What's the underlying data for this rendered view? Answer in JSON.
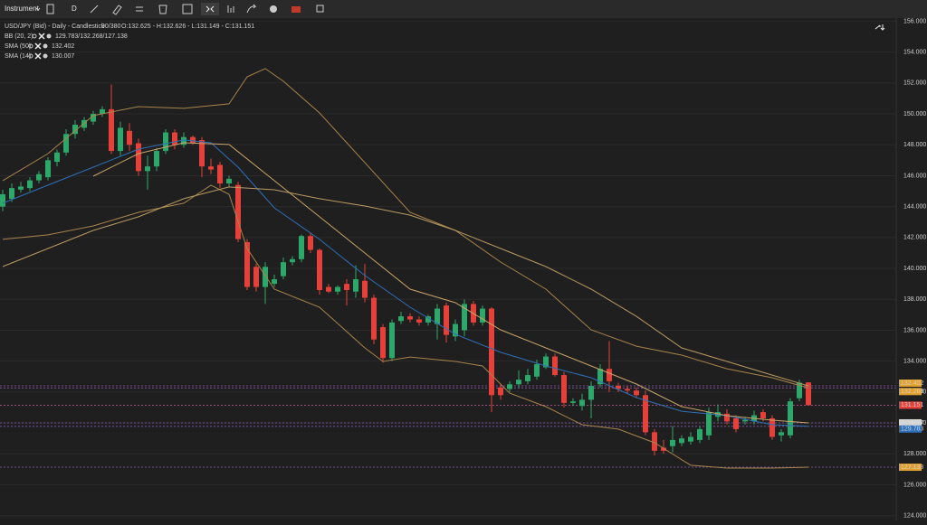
{
  "toolbar": {
    "instrument": "Instrument",
    "timeframe": "D"
  },
  "chart_data": {
    "type": "candlestick",
    "title": "USD/JPY (Bid) - Daily - Candlestick",
    "count_text": "90/380",
    "ohlc_text": "O:132.625 - H:132.626 - L:131.149 - C:131.151",
    "up_color": "#2ea86a",
    "down_color": "#e5413a",
    "ylim": [
      123.69,
      156.2
    ],
    "yticks": [
      {
        "value": 124,
        "label": "124.000"
      },
      {
        "value": 126,
        "label": "126.000"
      },
      {
        "value": 128,
        "label": "128.000"
      },
      {
        "value": 130,
        "label": "130.000"
      },
      {
        "value": 132,
        "label": "132.000"
      },
      {
        "value": 134,
        "label": "134.000"
      },
      {
        "value": 136,
        "label": "136.000"
      },
      {
        "value": 138,
        "label": "138.000"
      },
      {
        "value": 140,
        "label": "140.000"
      },
      {
        "value": 142,
        "label": "142.000"
      },
      {
        "value": 144,
        "label": "144.000"
      },
      {
        "value": 146,
        "label": "146.000"
      },
      {
        "value": 148,
        "label": "148.000"
      },
      {
        "value": 150,
        "label": "150.000"
      },
      {
        "value": 152,
        "label": "152.000"
      },
      {
        "value": 154,
        "label": "154.000"
      },
      {
        "value": 156,
        "label": "156.000"
      }
    ],
    "grid": true,
    "open": [
      144.0,
      144.5,
      145.1,
      145.2,
      145.7,
      145.9,
      146.9,
      147.5,
      148.7,
      149.1,
      149.5,
      150.0,
      150.3,
      147.6,
      148.9,
      148.1,
      146.3,
      146.6,
      147.6,
      148.8,
      148.0,
      148.5,
      148.3,
      146.6,
      146.7,
      145.5,
      145.4,
      141.7,
      140.1,
      138.8,
      139.0,
      139.5,
      140.4,
      140.6,
      142.1,
      141.2,
      138.8,
      138.5,
      139.0,
      138.5,
      139.2,
      138.1,
      136.2,
      134.2,
      136.6,
      136.9,
      136.7,
      136.5,
      136.4,
      137.6,
      135.6,
      136.0,
      137.7,
      136.5,
      137.4,
      132.3,
      132.2,
      132.5,
      132.7,
      133.0,
      133.6,
      134.3,
      133.1,
      131.3,
      131.1,
      131.5,
      132.5,
      133.5,
      132.4,
      132.2,
      132.1,
      131.8,
      129.4,
      128.4,
      128.5,
      128.7,
      128.8,
      128.9,
      129.2,
      130.4,
      130.6,
      130.3,
      130.1,
      130.1,
      130.7,
      130.3,
      129.2,
      129.2,
      131.6,
      132.625
    ],
    "high": [
      145.1,
      145.5,
      145.6,
      145.9,
      146.3,
      147.2,
      147.7,
      149.0,
      149.6,
      149.8,
      150.2,
      150.5,
      151.9,
      149.5,
      149.4,
      148.4,
      147.3,
      147.8,
      149.0,
      149.0,
      148.8,
      148.6,
      148.5,
      147.1,
      146.9,
      146.0,
      145.6,
      141.9,
      140.3,
      140.4,
      139.6,
      140.7,
      140.8,
      142.2,
      142.3,
      141.3,
      139.0,
      138.9,
      139.3,
      140.2,
      140.3,
      138.3,
      136.4,
      136.7,
      137.2,
      137.1,
      136.9,
      137.0,
      137.7,
      137.8,
      136.7,
      138.0,
      137.9,
      137.6,
      137.5,
      132.5,
      132.7,
      133.4,
      133.5,
      134.1,
      134.5,
      134.5,
      133.3,
      131.6,
      131.9,
      132.7,
      133.8,
      135.3,
      132.6,
      132.4,
      132.3,
      132.1,
      129.6,
      128.9,
      129.8,
      129.2,
      129.4,
      129.8,
      131.0,
      131.2,
      130.9,
      130.5,
      130.4,
      130.8,
      130.9,
      130.5,
      129.6,
      131.6,
      132.8,
      132.626
    ],
    "low": [
      143.7,
      144.3,
      144.9,
      145.0,
      145.5,
      145.7,
      146.6,
      147.3,
      148.4,
      148.9,
      149.3,
      149.8,
      147.4,
      147.3,
      147.6,
      146.0,
      145.1,
      146.3,
      147.4,
      147.7,
      147.8,
      148.0,
      145.9,
      146.1,
      145.2,
      145.3,
      141.7,
      138.6,
      138.5,
      137.7,
      138.8,
      139.3,
      140.2,
      140.4,
      141.0,
      138.3,
      138.4,
      138.3,
      137.6,
      138.1,
      137.8,
      135.1,
      133.9,
      134.0,
      136.4,
      136.5,
      136.3,
      136.3,
      135.4,
      135.2,
      135.3,
      135.6,
      136.3,
      136.3,
      130.7,
      131.5,
      132.0,
      132.3,
      132.5,
      132.8,
      133.5,
      133.0,
      131.0,
      131.1,
      130.8,
      130.3,
      132.3,
      132.0,
      132.0,
      131.9,
      131.6,
      129.2,
      127.9,
      128.0,
      128.1,
      128.5,
      128.6,
      128.7,
      128.9,
      130.1,
      129.9,
      129.4,
      129.9,
      129.9,
      130.1,
      128.9,
      128.8,
      129.0,
      131.4,
      131.149
    ],
    "close": [
      144.8,
      145.2,
      145.3,
      145.7,
      146.1,
      147.0,
      147.5,
      148.7,
      149.3,
      149.6,
      150.0,
      150.3,
      147.6,
      149.1,
      148.0,
      146.3,
      146.6,
      147.6,
      148.8,
      148.0,
      148.5,
      148.1,
      146.6,
      146.4,
      145.5,
      145.8,
      141.9,
      138.8,
      138.8,
      140.1,
      139.3,
      140.4,
      140.6,
      142.1,
      141.2,
      138.6,
      138.5,
      138.8,
      138.6,
      139.3,
      138.1,
      135.4,
      134.2,
      136.5,
      136.9,
      136.7,
      136.5,
      136.9,
      137.4,
      135.7,
      136.4,
      137.7,
      136.5,
      137.4,
      131.8,
      131.8,
      132.5,
      132.8,
      133.1,
      133.8,
      134.3,
      133.1,
      131.3,
      131.4,
      131.5,
      132.4,
      133.5,
      132.7,
      132.2,
      132.1,
      131.8,
      129.4,
      128.2,
      128.2,
      128.9,
      129.0,
      129.1,
      129.6,
      130.7,
      130.7,
      130.1,
      129.6,
      130.2,
      130.5,
      130.3,
      129.1,
      129.4,
      131.4,
      132.6,
      131.151
    ],
    "indicators": [
      {
        "label": "BB (20, 2)",
        "value_text": "129.783/132.268/127.138",
        "lines": [
          {
            "color": "#a8844c",
            "x": [
              0,
              5,
              10,
              15,
              20,
              25,
              27,
              29,
              31,
              35,
              40,
              45,
              50,
              55,
              60,
              65,
              70,
              75,
              80,
              85,
              89
            ],
            "values": [
              145.68,
              147.43,
              149.89,
              150.47,
              150.36,
              150.65,
              152.4,
              152.93,
              152.11,
              150.06,
              146.85,
              143.63,
              142.46,
              140.41,
              138.66,
              136.03,
              134.97,
              134.39,
              133.51,
              132.93,
              132.268
            ]
          },
          {
            "color": "#2f6fb8",
            "x": [
              0,
              5,
              10,
              15,
              20,
              23,
              26,
              30,
              35,
              40,
              45,
              50,
              55,
              60,
              65,
              70,
              75,
              80,
              85,
              89
            ],
            "values": [
              144.22,
              145.39,
              146.55,
              147.72,
              148.31,
              148.13,
              146.55,
              143.92,
              141.88,
              139.54,
              137.49,
              135.74,
              134.57,
              133.69,
              132.93,
              131.64,
              130.76,
              130.47,
              129.89,
              129.783
            ]
          },
          {
            "color": "#a8844c",
            "x": [
              0,
              5,
              10,
              15,
              20,
              23,
              25,
              27,
              30,
              35,
              40,
              42,
              45,
              50,
              53,
              56,
              60,
              64,
              68,
              72,
              76,
              80,
              85,
              89
            ],
            "values": [
              141.88,
              142.17,
              142.75,
              143.63,
              144.22,
              145.39,
              144.8,
              141.29,
              138.66,
              137.49,
              134.86,
              133.98,
              134.27,
              133.98,
              133.69,
              131.93,
              131.06,
              129.89,
              129.6,
              128.72,
              127.26,
              127.08,
              127.08,
              127.138
            ]
          }
        ]
      },
      {
        "label": "SMA (50)",
        "value": 132.402,
        "color": "#b89a63",
        "x": [
          0,
          5,
          10,
          15,
          20,
          25,
          30,
          35,
          40,
          45,
          50,
          55,
          60,
          65,
          70,
          75,
          80,
          85,
          89
        ],
        "values": [
          140.12,
          141.29,
          142.46,
          143.34,
          144.51,
          145.27,
          145.09,
          144.51,
          144.04,
          143.45,
          142.46,
          141.29,
          140.12,
          138.66,
          136.9,
          134.86,
          133.98,
          133.1,
          132.402
        ]
      },
      {
        "label": "SMA (14)",
        "value": 130.007,
        "color": "#c9a36a",
        "x": [
          10,
          15,
          20,
          25,
          30,
          35,
          40,
          45,
          50,
          55,
          60,
          65,
          70,
          75,
          80,
          85,
          89
        ],
        "values": [
          145.97,
          147.43,
          148.13,
          148.02,
          145.68,
          143.34,
          141.0,
          138.66,
          137.78,
          136.03,
          134.86,
          133.69,
          132.52,
          131.06,
          130.47,
          130.18,
          130.007
        ]
      }
    ],
    "price_tags": [
      {
        "value": 132.402,
        "color": "#e0a030",
        "line": "#8e5bb0"
      },
      {
        "value": 132.268,
        "color": "#e0a030",
        "line": "#8e5bb0"
      },
      {
        "value": 131.151,
        "color": "#e5413a",
        "line": "#c65a9a"
      },
      {
        "value": 130.007,
        "color": "#d8d8d8",
        "line": "#8e5bb0"
      },
      {
        "value": 129.783,
        "color": "#2f6fb8",
        "line": "#8e5bb0"
      },
      {
        "value": 127.138,
        "color": "#e0a030",
        "line": "#8e5bb0"
      }
    ]
  }
}
